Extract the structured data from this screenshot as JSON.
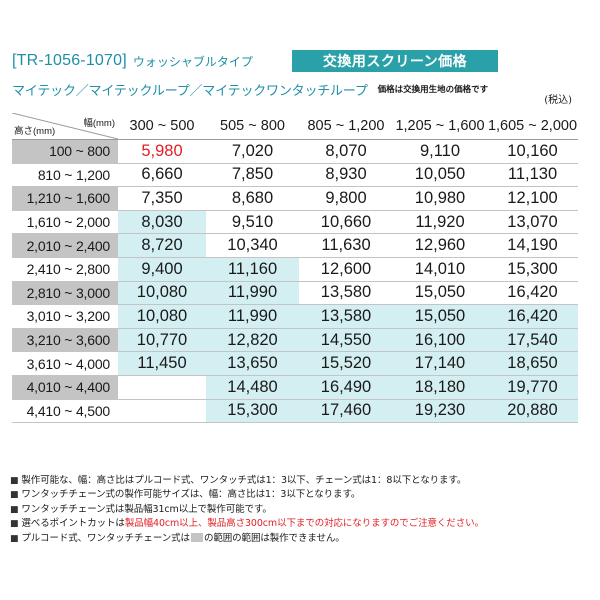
{
  "header": {
    "code": "[TR-1056-1070]",
    "type": "ウォッシャブルタイプ",
    "banner": "交換用スクリーン価格",
    "series": "マイテック／マイテックループ／マイテックワンタッチループ",
    "price_note": "価格は交換用生地の価格です",
    "tax": "(税込)"
  },
  "colors": {
    "accent": "#2aa0a8",
    "highlight_red": "#e01f26",
    "row_gray": "#c4c4c4",
    "cell_cyan": "#d4eff1"
  },
  "table": {
    "corner_width_label": "幅(mm)",
    "corner_height_label": "高さ(mm)",
    "columns": [
      "300 ~ 500",
      "505 ~ 800",
      "805 ~ 1,200",
      "1,205 ~ 1,600",
      "1,605 ~ 2,000"
    ],
    "rows": [
      {
        "label": "100 ~ 800",
        "values": [
          "5,980",
          "7,020",
          "8,070",
          "9,110",
          "10,160"
        ]
      },
      {
        "label": "810 ~ 1,200",
        "values": [
          "6,660",
          "7,850",
          "8,930",
          "10,050",
          "11,130"
        ]
      },
      {
        "label": "1,210 ~ 1,600",
        "values": [
          "7,350",
          "8,680",
          "9,800",
          "10,980",
          "12,100"
        ]
      },
      {
        "label": "1,610 ~ 2,000",
        "values": [
          "8,030",
          "9,510",
          "10,660",
          "11,920",
          "13,070"
        ]
      },
      {
        "label": "2,010 ~ 2,400",
        "values": [
          "8,720",
          "10,340",
          "11,630",
          "12,960",
          "14,190"
        ]
      },
      {
        "label": "2,410 ~ 2,800",
        "values": [
          "9,400",
          "11,160",
          "12,600",
          "14,010",
          "15,300"
        ]
      },
      {
        "label": "2,810 ~ 3,000",
        "values": [
          "10,080",
          "11,990",
          "13,580",
          "15,050",
          "16,420"
        ]
      },
      {
        "label": "3,010 ~ 3,200",
        "values": [
          "10,080",
          "11,990",
          "13,580",
          "15,050",
          "16,420"
        ]
      },
      {
        "label": "3,210 ~ 3,600",
        "values": [
          "10,770",
          "12,820",
          "14,550",
          "16,100",
          "17,540"
        ]
      },
      {
        "label": "3,610 ~ 4,000",
        "values": [
          "11,450",
          "13,650",
          "15,520",
          "17,140",
          "18,650"
        ]
      },
      {
        "label": "4,010 ~ 4,400",
        "values": [
          "",
          "14,480",
          "16,490",
          "18,180",
          "19,770"
        ]
      },
      {
        "label": "4,410 ~ 4,500",
        "values": [
          "",
          "15,300",
          "17,460",
          "19,230",
          "20,880"
        ]
      }
    ]
  },
  "notes": {
    "n1": "製作可能な、幅：高さ比はプルコード式、ワンタッチ式は1：3以下、チェーン式は1：8以下となります。",
    "n2": "ワンタッチチェーン式の製作可能サイズは、幅：高さ比は1：3以下となります。",
    "n3": "ワンタッチチェーン式は製品幅31cm以上で製作可能です。",
    "n4a": "選べるポイントカットは",
    "n4b": "製品幅40cm以上、製品高さ300cm以下までの対応になりますのでご注意ください。",
    "n5a": "プルコード式、ワンタッチチェーン式は",
    "n5b": "の範囲の範囲は製作できません。"
  }
}
